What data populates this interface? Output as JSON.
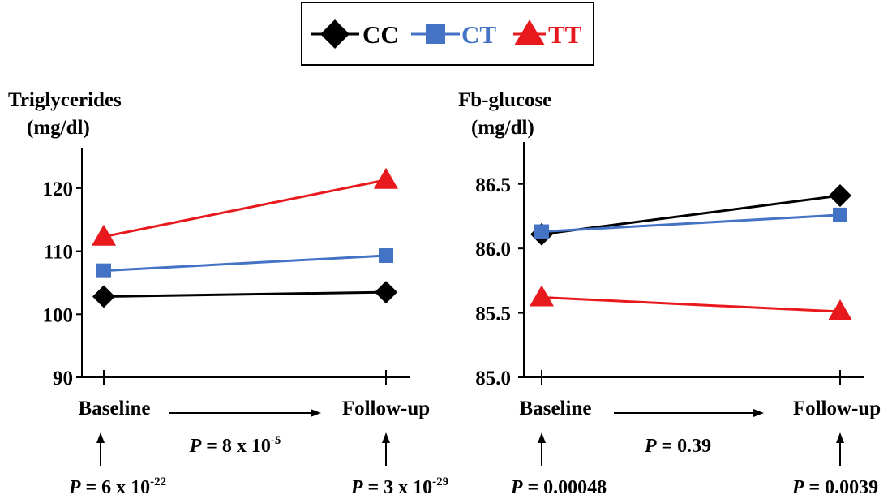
{
  "legend": {
    "items": [
      {
        "label": "CC",
        "color": "#000000",
        "marker": "diamond"
      },
      {
        "label": "CT",
        "color": "#4472C4",
        "marker": "square"
      },
      {
        "label": "TT",
        "color": "#E8191C",
        "marker": "triangle"
      }
    ]
  },
  "chart_data": [
    {
      "type": "line",
      "ylabel_line1": "Triglycerides",
      "ylabel_line2": "(mg/dl)",
      "categories": [
        "Baseline",
        "Follow-up"
      ],
      "ylim": [
        90,
        125
      ],
      "yticks": [
        {
          "value": 90,
          "label": "90"
        },
        {
          "value": 100,
          "label": "100"
        },
        {
          "value": 110,
          "label": "110"
        },
        {
          "value": 120,
          "label": "120"
        }
      ],
      "series": [
        {
          "name": "CC",
          "values": [
            102.8,
            103.5
          ]
        },
        {
          "name": "CT",
          "values": [
            106.9,
            109.3
          ]
        },
        {
          "name": "TT",
          "values": [
            112.3,
            121.3
          ]
        }
      ],
      "p_between": "8 x 10",
      "p_between_exp": "-5",
      "p_baseline": "6 x 10",
      "p_baseline_exp": "-22",
      "p_followup": "3 x 10",
      "p_followup_exp": "-29"
    },
    {
      "type": "line",
      "ylabel_line1": "Fb-glucose",
      "ylabel_line2": "(mg/dl)",
      "categories": [
        "Baseline",
        "Follow-up"
      ],
      "ylim": [
        85.0,
        86.7
      ],
      "yticks": [
        {
          "value": 85.0,
          "label": "85.0"
        },
        {
          "value": 85.5,
          "label": "85.5"
        },
        {
          "value": 86.0,
          "label": "86.0"
        },
        {
          "value": 86.5,
          "label": "86.5"
        }
      ],
      "series": [
        {
          "name": "CC",
          "values": [
            86.11,
            86.41
          ]
        },
        {
          "name": "CT",
          "values": [
            86.13,
            86.26
          ]
        },
        {
          "name": "TT",
          "values": [
            85.62,
            85.51
          ]
        }
      ],
      "p_between": "0.39",
      "p_between_exp": "",
      "p_baseline": "0.00048",
      "p_baseline_exp": "",
      "p_followup": "0.0039",
      "p_followup_exp": ""
    }
  ],
  "p_symbol": "P",
  "equals": " = "
}
